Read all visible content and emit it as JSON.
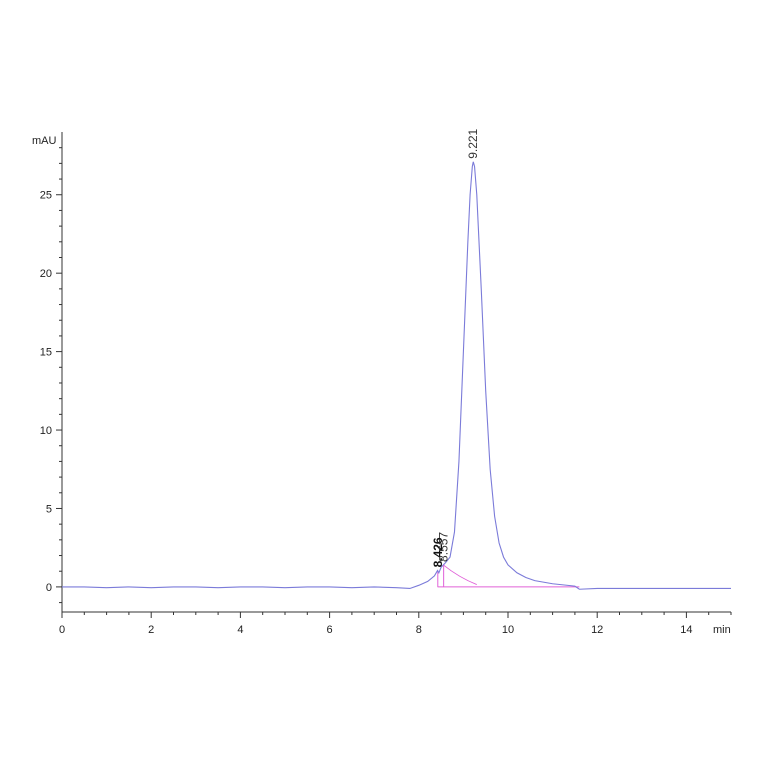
{
  "chart_data": {
    "type": "line",
    "title": "",
    "xlabel": "min",
    "ylabel": "mAU",
    "xlim": [
      0,
      15
    ],
    "ylim": [
      -1.6,
      29
    ],
    "x_ticks": [
      0,
      2,
      4,
      6,
      8,
      10,
      12,
      14
    ],
    "y_ticks": [
      0,
      5,
      10,
      15,
      20,
      25
    ],
    "grid": false,
    "legend": "none",
    "colors": {
      "signal": "#7b7bd9",
      "baseline": "#e060d8",
      "axis": "#333333"
    },
    "series": [
      {
        "x": [
          0,
          0.5,
          1,
          1.5,
          2,
          2.5,
          3,
          3.5,
          4,
          4.5,
          5,
          5.5,
          6,
          6.5,
          7,
          7.5,
          7.8,
          8.0,
          8.2,
          8.35,
          8.42,
          8.45,
          8.5,
          8.55,
          8.6,
          8.7,
          8.8,
          8.9,
          9.0,
          9.1,
          9.15,
          9.2,
          9.221,
          9.25,
          9.3,
          9.4,
          9.5,
          9.6,
          9.7,
          9.8,
          9.9,
          10.0,
          10.2,
          10.4,
          10.6,
          11.0,
          11.5,
          11.6,
          12,
          13,
          14,
          15
        ],
        "y": [
          0.0,
          0.0,
          -0.05,
          0.0,
          -0.05,
          0.0,
          0.0,
          -0.05,
          0.0,
          0.0,
          -0.05,
          0.0,
          0.0,
          -0.05,
          0.0,
          -0.05,
          -0.1,
          0.1,
          0.35,
          0.7,
          1.05,
          0.9,
          1.25,
          1.4,
          1.55,
          1.9,
          3.5,
          8.0,
          15.0,
          22.0,
          25.0,
          26.8,
          27.1,
          26.8,
          25.0,
          19.0,
          12.5,
          7.5,
          4.5,
          2.8,
          1.9,
          1.4,
          0.9,
          0.6,
          0.4,
          0.2,
          0.05,
          -0.15,
          -0.1,
          -0.1,
          -0.1,
          -0.1
        ]
      }
    ],
    "baseline": {
      "x": [
        8.42,
        11.6
      ],
      "y": [
        0.0,
        0.0
      ]
    },
    "peaks": [
      {
        "label": "8.426",
        "x": 8.426,
        "y": 1.05,
        "bold": true
      },
      {
        "label": "8.557",
        "x": 8.557,
        "y": 1.4,
        "bold": false
      },
      {
        "label": "9.221",
        "x": 9.221,
        "y": 27.1,
        "bold": false
      }
    ]
  }
}
